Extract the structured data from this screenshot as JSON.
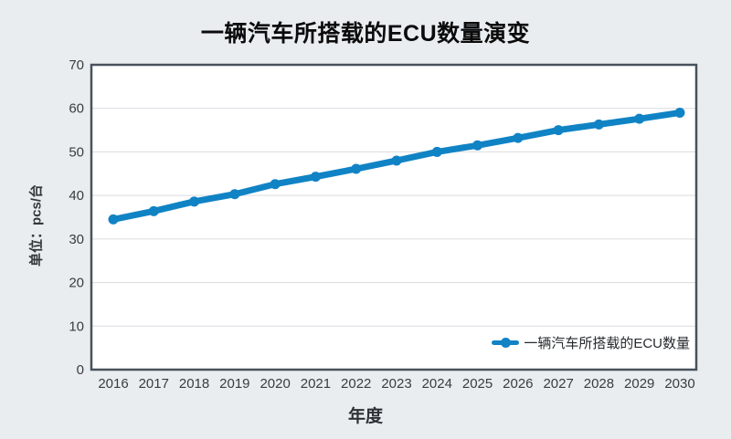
{
  "chart_data": {
    "type": "line",
    "title": "一辆汽车所搭载的ECU数量演变",
    "xlabel": "年度",
    "ylabel": "单位：pcs/台",
    "categories": [
      "2016",
      "2017",
      "2018",
      "2019",
      "2020",
      "2021",
      "2022",
      "2023",
      "2024",
      "2025",
      "2026",
      "2027",
      "2028",
      "2029",
      "2030"
    ],
    "series": [
      {
        "name": "一辆汽车所搭载的ECU数量",
        "values": [
          34.5,
          36.4,
          38.6,
          40.3,
          42.6,
          44.3,
          46.1,
          48.0,
          50.0,
          51.5,
          53.2,
          55.0,
          56.3,
          57.6,
          59.0
        ]
      }
    ],
    "ylim": [
      0,
      70
    ],
    "ytick_step": 10,
    "grid": "horizontal",
    "legend_position": "inside-bottom-right",
    "colors": {
      "background": "#e9edf0",
      "plot_background": "#ffffff",
      "frame": "#47525c",
      "gridline": "#d9dcdf",
      "line": "#1083c5",
      "tick_text": "#383d42",
      "title_text": "#0b0b0b"
    }
  }
}
